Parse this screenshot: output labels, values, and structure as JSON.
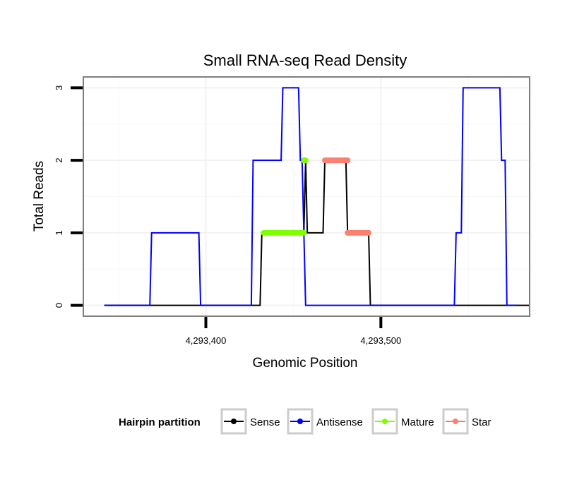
{
  "chart_data": {
    "type": "line",
    "title": "Small RNA-seq Read Density",
    "xlabel": "Genomic Position",
    "ylabel": "Total Reads",
    "xlim": [
      4293330,
      4293585
    ],
    "ylim": [
      -0.15,
      3.15
    ],
    "x_ticks": [
      {
        "value": 4293400,
        "label": "4,293,400"
      },
      {
        "value": 4293500,
        "label": "4,293,500"
      }
    ],
    "y_ticks": [
      {
        "value": 0,
        "label": "0"
      },
      {
        "value": 1,
        "label": "1"
      },
      {
        "value": 2,
        "label": "2"
      },
      {
        "value": 3,
        "label": "3"
      }
    ],
    "grid": true,
    "legend": {
      "title": "Hairpin partition",
      "position": "bottom",
      "items": [
        "Sense",
        "Antisense",
        "Mature",
        "Star"
      ]
    },
    "series": [
      {
        "name": "Sense",
        "color": "#000000",
        "style": "line",
        "points": [
          [
            4293342,
            0
          ],
          [
            4293431,
            0
          ],
          [
            4293432,
            1
          ],
          [
            4293456,
            1
          ],
          [
            4293457,
            2
          ],
          [
            4293458,
            1
          ],
          [
            4293467,
            1
          ],
          [
            4293468,
            2
          ],
          [
            4293480,
            2
          ],
          [
            4293481,
            1
          ],
          [
            4293493,
            1
          ],
          [
            4293494,
            0
          ],
          [
            4293585,
            0
          ]
        ]
      },
      {
        "name": "Antisense",
        "color": "#0000ff",
        "style": "line",
        "points": [
          [
            4293342,
            0
          ],
          [
            4293368,
            0
          ],
          [
            4293369,
            1
          ],
          [
            4293396,
            1
          ],
          [
            4293397,
            0
          ],
          [
            4293426,
            0
          ],
          [
            4293427,
            2
          ],
          [
            4293443,
            2
          ],
          [
            4293444,
            3
          ],
          [
            4293453,
            3
          ],
          [
            4293454,
            2
          ],
          [
            4293455,
            2
          ],
          [
            4293456,
            1
          ],
          [
            4293457,
            0
          ],
          [
            4293542,
            0
          ],
          [
            4293543,
            1
          ],
          [
            4293546,
            1
          ],
          [
            4293547,
            3
          ],
          [
            4293568,
            3
          ],
          [
            4293569,
            2
          ],
          [
            4293571,
            2
          ],
          [
            4293572,
            0
          ],
          [
            4293577,
            0
          ]
        ]
      },
      {
        "name": "Mature",
        "color": "#7fff00",
        "style": "thick",
        "segments": [
          [
            [
              4293433,
              1
            ],
            [
              4293456,
              1
            ]
          ],
          [
            [
              4293456,
              2
            ],
            [
              4293457,
              2
            ]
          ]
        ]
      },
      {
        "name": "Star",
        "color": "#fa8072",
        "style": "thick",
        "segments": [
          [
            [
              4293468,
              2
            ],
            [
              4293481,
              2
            ]
          ],
          [
            [
              4293481,
              1
            ],
            [
              4293493,
              1
            ]
          ]
        ]
      }
    ]
  }
}
